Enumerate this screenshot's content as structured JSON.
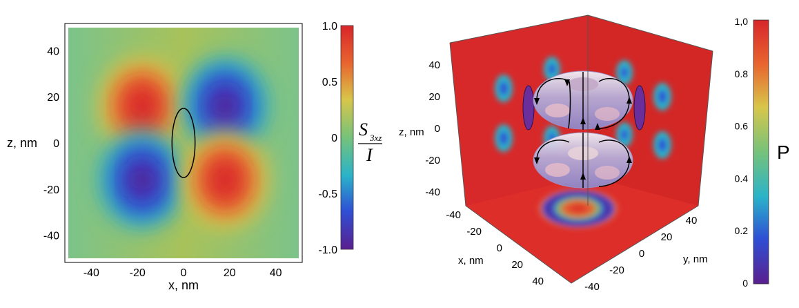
{
  "chart_data": [
    {
      "type": "heatmap",
      "xlabel": "x, nm",
      "ylabel": "z, nm",
      "x_ticks": [
        -40,
        -20,
        0,
        20,
        40
      ],
      "y_ticks": [
        40,
        20,
        0,
        -20,
        -40
      ],
      "xlim": [
        -50,
        50
      ],
      "ylim": [
        -50,
        50
      ],
      "colorbar": {
        "label_main": "S",
        "label_sub": "3xz",
        "label_denominator": "I",
        "ticks": [
          "1.0",
          "0.5",
          "0",
          "-0.5",
          "-1.0"
        ],
        "range": [
          -1.0,
          1.0
        ],
        "colors": [
          "#5a1f8f",
          "#2f4fd4",
          "#2ab3c9",
          "#76c27a",
          "#d8c64a",
          "#e8662f",
          "#d8252a"
        ]
      },
      "blobs": [
        {
          "x": -18,
          "z": 16,
          "value": 1.0
        },
        {
          "x": 18,
          "z": 16,
          "value": -1.0
        },
        {
          "x": -18,
          "z": -16,
          "value": -1.0
        },
        {
          "x": 18,
          "z": -16,
          "value": 1.0
        }
      ],
      "ellipse": {
        "cx": 0,
        "cz": 0,
        "rx": 5,
        "rz": 15
      },
      "background_value": 0.1
    },
    {
      "type": "heatmap",
      "xlabel": "x, nm",
      "ylabel": "y, nm",
      "zlabel": "z, nm",
      "x_ticks": [
        -40,
        -20,
        0,
        20,
        40
      ],
      "y_ticks": [
        -40,
        -20,
        0,
        20,
        40
      ],
      "z_ticks": [
        40,
        20,
        0,
        -20,
        -40
      ],
      "colorbar": {
        "label": "P",
        "ticks": [
          "1,0",
          "0.8",
          "0.6",
          "0.4",
          "0.2",
          "0"
        ],
        "range": [
          0,
          1.0
        ],
        "colors": [
          "#5a1f8f",
          "#2f4fd4",
          "#2ab3c9",
          "#76c27a",
          "#d8c64a",
          "#e8662f",
          "#d8252a"
        ]
      },
      "surface": "two tori with field-line arrows",
      "background_value": 1.0
    }
  ]
}
